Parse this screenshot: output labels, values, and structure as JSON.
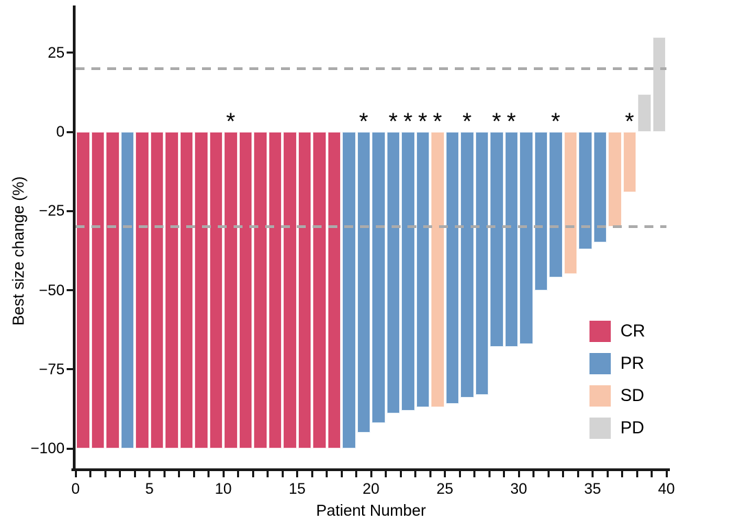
{
  "chart_data": {
    "type": "bar",
    "title": "",
    "xlabel": "Patient Number",
    "ylabel": "Best size change (%)",
    "xlim": [
      0,
      40
    ],
    "ylim": [
      -100,
      30
    ],
    "grid": false,
    "x_tick_step": 1,
    "x_tick_labels": [
      "0",
      "5",
      "10",
      "15",
      "20",
      "25",
      "30",
      "35",
      "40"
    ],
    "y_ticks": [
      {
        "value": 25,
        "label": "25"
      },
      {
        "value": 0,
        "label": "0"
      },
      {
        "value": -25,
        "label": "−25"
      },
      {
        "value": -50,
        "label": "−50"
      },
      {
        "value": -75,
        "label": "−75"
      },
      {
        "value": -100,
        "label": "−100"
      }
    ],
    "reference_lines": [
      {
        "value": 20,
        "style": "dashed",
        "color": "#ABABAB"
      },
      {
        "value": -30,
        "style": "dashed",
        "color": "#ABABAB"
      }
    ],
    "annotation_symbol": "*",
    "legend_position": "inside-right",
    "legend": [
      {
        "label": "CR",
        "color": "#D6476B"
      },
      {
        "label": "PR",
        "color": "#6897C6"
      },
      {
        "label": "SD",
        "color": "#F8C5AA"
      },
      {
        "label": "PD",
        "color": "#D3D3D3"
      }
    ],
    "bars": [
      {
        "patient": 1,
        "value": -100,
        "response": "CR",
        "asterisk": false
      },
      {
        "patient": 2,
        "value": -100,
        "response": "CR",
        "asterisk": false
      },
      {
        "patient": 3,
        "value": -100,
        "response": "CR",
        "asterisk": false
      },
      {
        "patient": 4,
        "value": -100,
        "response": "PR",
        "asterisk": false
      },
      {
        "patient": 5,
        "value": -100,
        "response": "CR",
        "asterisk": false
      },
      {
        "patient": 6,
        "value": -100,
        "response": "CR",
        "asterisk": false
      },
      {
        "patient": 7,
        "value": -100,
        "response": "CR",
        "asterisk": false
      },
      {
        "patient": 8,
        "value": -100,
        "response": "CR",
        "asterisk": false
      },
      {
        "patient": 9,
        "value": -100,
        "response": "CR",
        "asterisk": false
      },
      {
        "patient": 10,
        "value": -100,
        "response": "CR",
        "asterisk": false
      },
      {
        "patient": 11,
        "value": -100,
        "response": "CR",
        "asterisk": true
      },
      {
        "patient": 12,
        "value": -100,
        "response": "CR",
        "asterisk": false
      },
      {
        "patient": 13,
        "value": -100,
        "response": "CR",
        "asterisk": false
      },
      {
        "patient": 14,
        "value": -100,
        "response": "CR",
        "asterisk": false
      },
      {
        "patient": 15,
        "value": -100,
        "response": "CR",
        "asterisk": false
      },
      {
        "patient": 16,
        "value": -100,
        "response": "CR",
        "asterisk": false
      },
      {
        "patient": 17,
        "value": -100,
        "response": "CR",
        "asterisk": false
      },
      {
        "patient": 18,
        "value": -100,
        "response": "CR",
        "asterisk": false
      },
      {
        "patient": 19,
        "value": -100,
        "response": "PR",
        "asterisk": false
      },
      {
        "patient": 20,
        "value": -95,
        "response": "PR",
        "asterisk": true
      },
      {
        "patient": 21,
        "value": -92,
        "response": "PR",
        "asterisk": false
      },
      {
        "patient": 22,
        "value": -89,
        "response": "PR",
        "asterisk": true
      },
      {
        "patient": 23,
        "value": -88,
        "response": "PR",
        "asterisk": true
      },
      {
        "patient": 24,
        "value": -87,
        "response": "PR",
        "asterisk": true
      },
      {
        "patient": 25,
        "value": -87,
        "response": "SD",
        "asterisk": true
      },
      {
        "patient": 26,
        "value": -86,
        "response": "PR",
        "asterisk": false
      },
      {
        "patient": 27,
        "value": -84,
        "response": "PR",
        "asterisk": true
      },
      {
        "patient": 28,
        "value": -83,
        "response": "PR",
        "asterisk": false
      },
      {
        "patient": 29,
        "value": -68,
        "response": "PR",
        "asterisk": true
      },
      {
        "patient": 30,
        "value": -68,
        "response": "PR",
        "asterisk": true
      },
      {
        "patient": 31,
        "value": -67,
        "response": "PR",
        "asterisk": false
      },
      {
        "patient": 32,
        "value": -50,
        "response": "PR",
        "asterisk": false
      },
      {
        "patient": 33,
        "value": -46,
        "response": "PR",
        "asterisk": true
      },
      {
        "patient": 34,
        "value": -45,
        "response": "SD",
        "asterisk": false
      },
      {
        "patient": 35,
        "value": -37,
        "response": "PR",
        "asterisk": false
      },
      {
        "patient": 36,
        "value": -35,
        "response": "PR",
        "asterisk": false
      },
      {
        "patient": 37,
        "value": -30,
        "response": "SD",
        "asterisk": false
      },
      {
        "patient": 38,
        "value": -19,
        "response": "SD",
        "asterisk": true
      },
      {
        "patient": 39,
        "value": 12,
        "response": "PD",
        "asterisk": false
      },
      {
        "patient": 40,
        "value": 30,
        "response": "PD",
        "asterisk": false
      }
    ]
  }
}
